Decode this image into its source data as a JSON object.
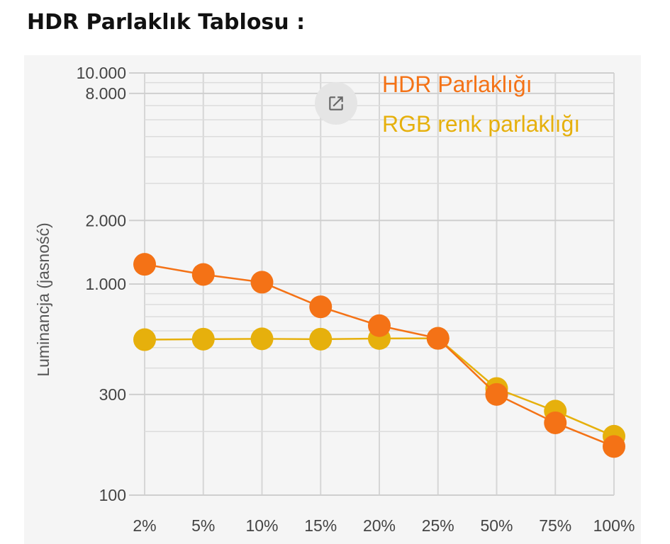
{
  "page": {
    "title": "HDR Parlaklık Tablosu :"
  },
  "toolbar": {
    "expand_icon": "open-in-new-icon"
  },
  "chart_data": {
    "type": "line",
    "title": "",
    "xlabel": "",
    "ylabel": "Luminancja (jasność)",
    "y_scale": "log",
    "ylim": [
      100,
      10000
    ],
    "grid": true,
    "legend_position": "top-right",
    "categories": [
      "2%",
      "5%",
      "10%",
      "15%",
      "20%",
      "25%",
      "50%",
      "75%",
      "100%"
    ],
    "y_ticks": [
      {
        "value": 100,
        "label": "100"
      },
      {
        "value": 300,
        "label": "300"
      },
      {
        "value": 1000,
        "label": "1.000"
      },
      {
        "value": 2000,
        "label": "2.000"
      },
      {
        "value": 8000,
        "label": "8.000"
      },
      {
        "value": 10000,
        "label": "10.000"
      }
    ],
    "y_minor_gridlines": [
      200,
      400,
      500,
      600,
      700,
      800,
      900,
      3000,
      4000,
      5000,
      6000,
      7000,
      9000
    ],
    "series": [
      {
        "name": "RGB renk parlaklığı",
        "color": "#e6b00c",
        "values": [
          545,
          548,
          550,
          548,
          552,
          553,
          320,
          250,
          190
        ]
      },
      {
        "name": "HDR Parlaklığı",
        "color": "#f47216",
        "values": [
          1240,
          1110,
          1020,
          780,
          635,
          553,
          300,
          220,
          170
        ]
      }
    ]
  }
}
